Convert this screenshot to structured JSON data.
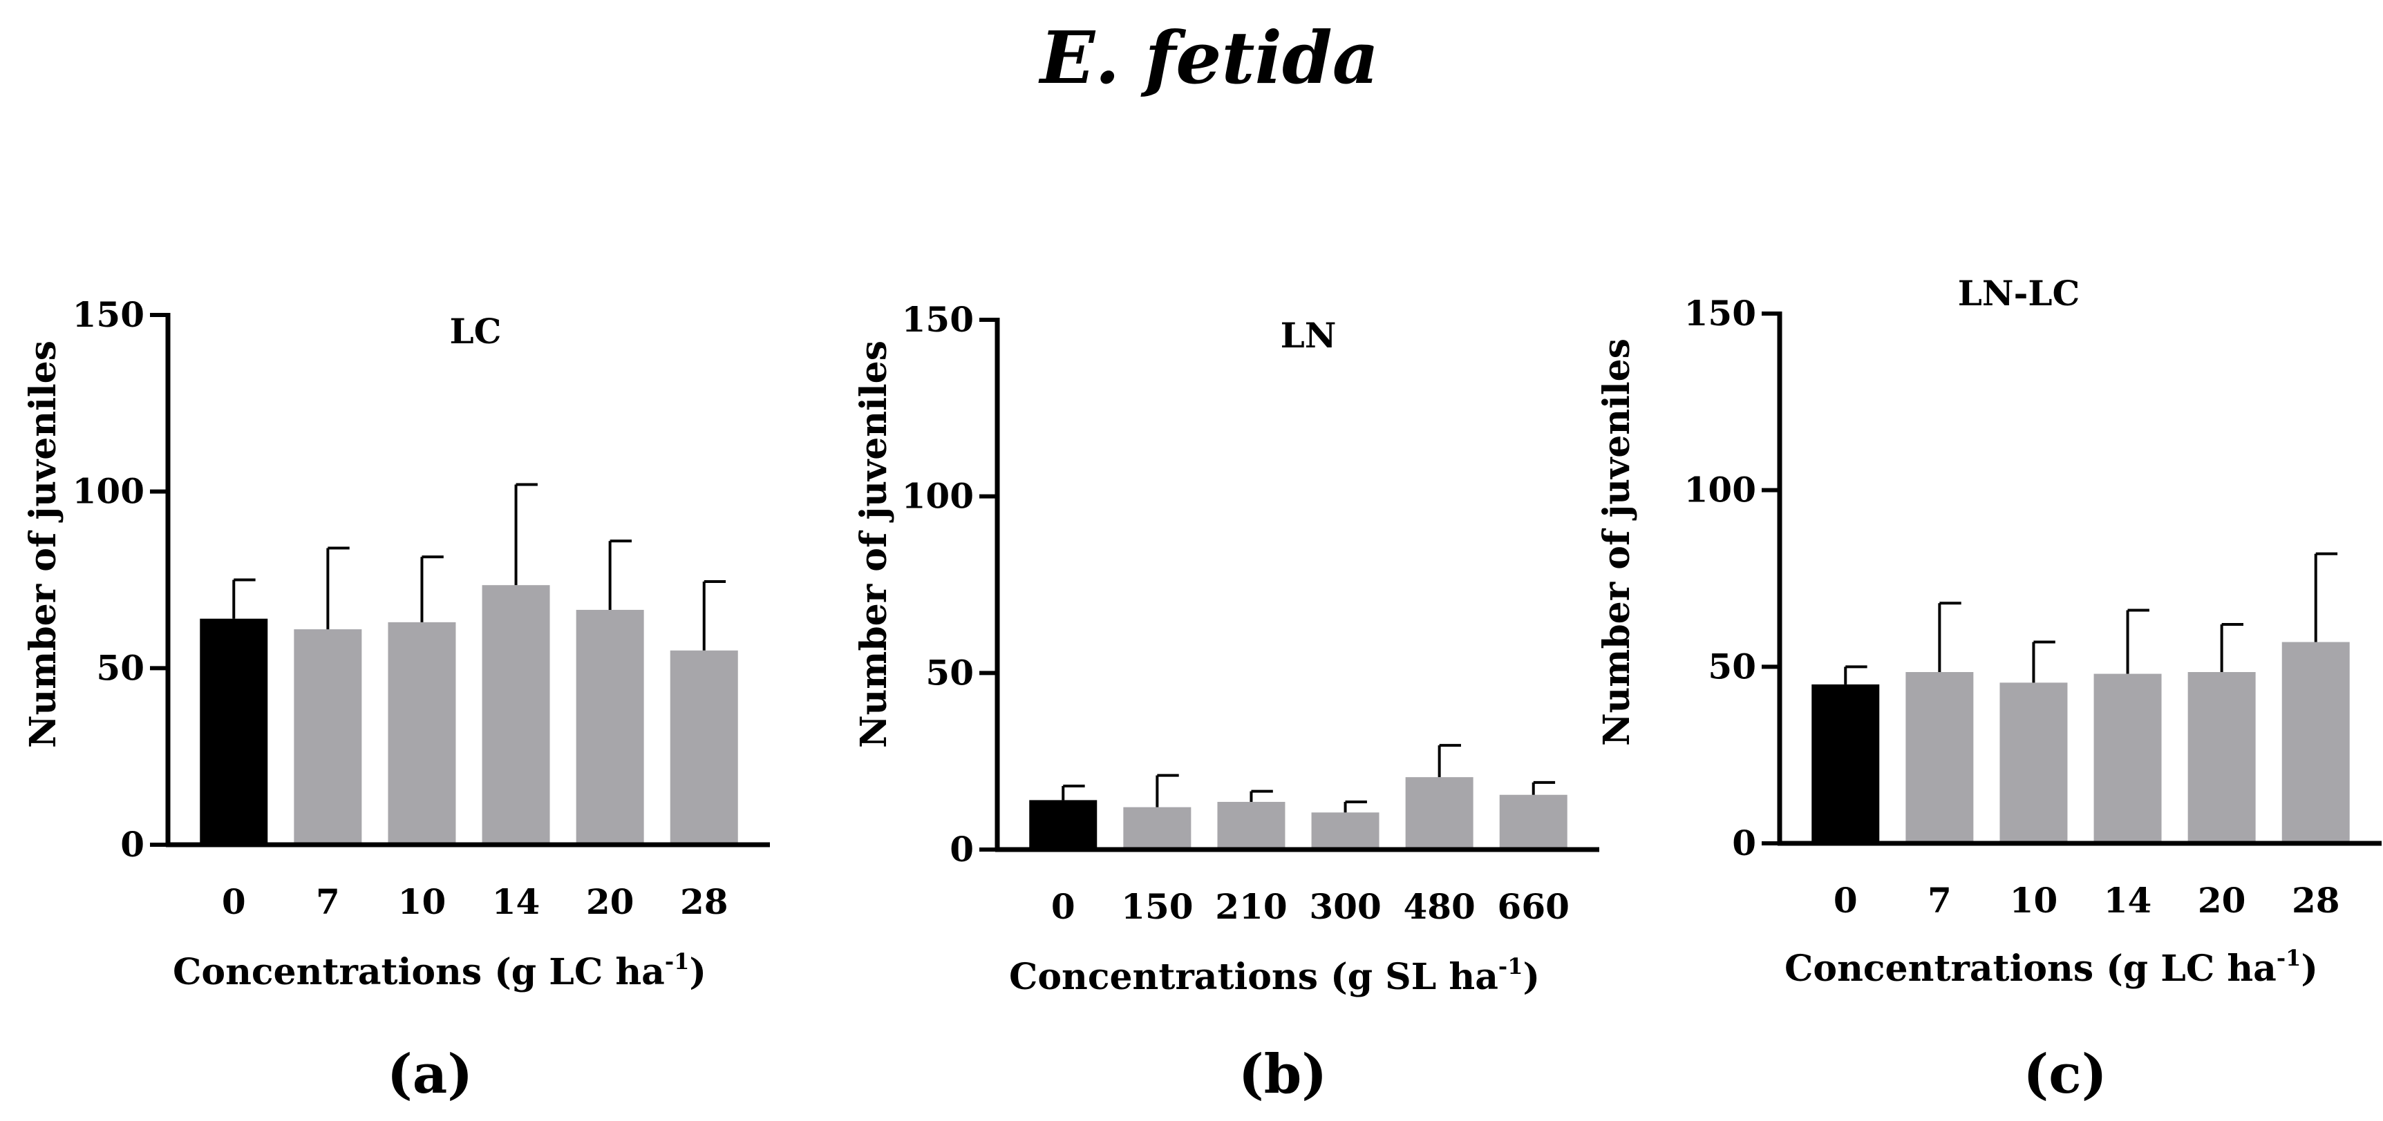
{
  "title": "E. fetida",
  "colors": {
    "control": "#000000",
    "treatment": "#a7a6aa",
    "axis": "#000000"
  },
  "chart_data": [
    {
      "type": "bar",
      "panel_label": "(a)",
      "title": "LC",
      "categories": [
        "0",
        "7",
        "10",
        "14",
        "20",
        "28"
      ],
      "values": [
        64,
        61,
        63,
        73.5,
        66.5,
        55
      ],
      "error_upper": [
        75,
        84,
        81.5,
        102,
        86,
        74.5
      ],
      "ylabel": "Number of juveniles",
      "xlabel_main": "Concentrations (g LC ha",
      "xlabel_sup": "-1",
      "xlabel_close": ")",
      "ylim": [
        0,
        150
      ],
      "yticks": [
        "0",
        "50",
        "100",
        "150"
      ]
    },
    {
      "type": "bar",
      "panel_label": "(b)",
      "title": "LN",
      "categories": [
        "0",
        "150",
        "210",
        "300",
        "480",
        "660"
      ],
      "values": [
        14,
        12,
        13.5,
        10.5,
        20.5,
        15.5
      ],
      "error_upper": [
        18,
        21,
        16.5,
        13.5,
        29.5,
        19
      ],
      "ylabel": "Number of juveniles",
      "xlabel_main": "Concentrations (g SL ha",
      "xlabel_sup": "-1",
      "xlabel_close": ")",
      "ylim": [
        0,
        150
      ],
      "yticks": [
        "0",
        "50",
        "100",
        "150"
      ]
    },
    {
      "type": "bar",
      "panel_label": "(c)",
      "title": "LN-LC",
      "categories": [
        "0",
        "7",
        "10",
        "14",
        "20",
        "28"
      ],
      "values": [
        45,
        48.5,
        45.5,
        48,
        48.5,
        57
      ],
      "error_upper": [
        50,
        68,
        57,
        66,
        62,
        82
      ],
      "ylabel": "Number of juveniles",
      "xlabel_main": "Concentrations (g LC ha",
      "xlabel_sup": "-1",
      "xlabel_close": ")",
      "ylim": [
        0,
        150
      ],
      "yticks": [
        "0",
        "50",
        "100",
        "150"
      ]
    }
  ]
}
